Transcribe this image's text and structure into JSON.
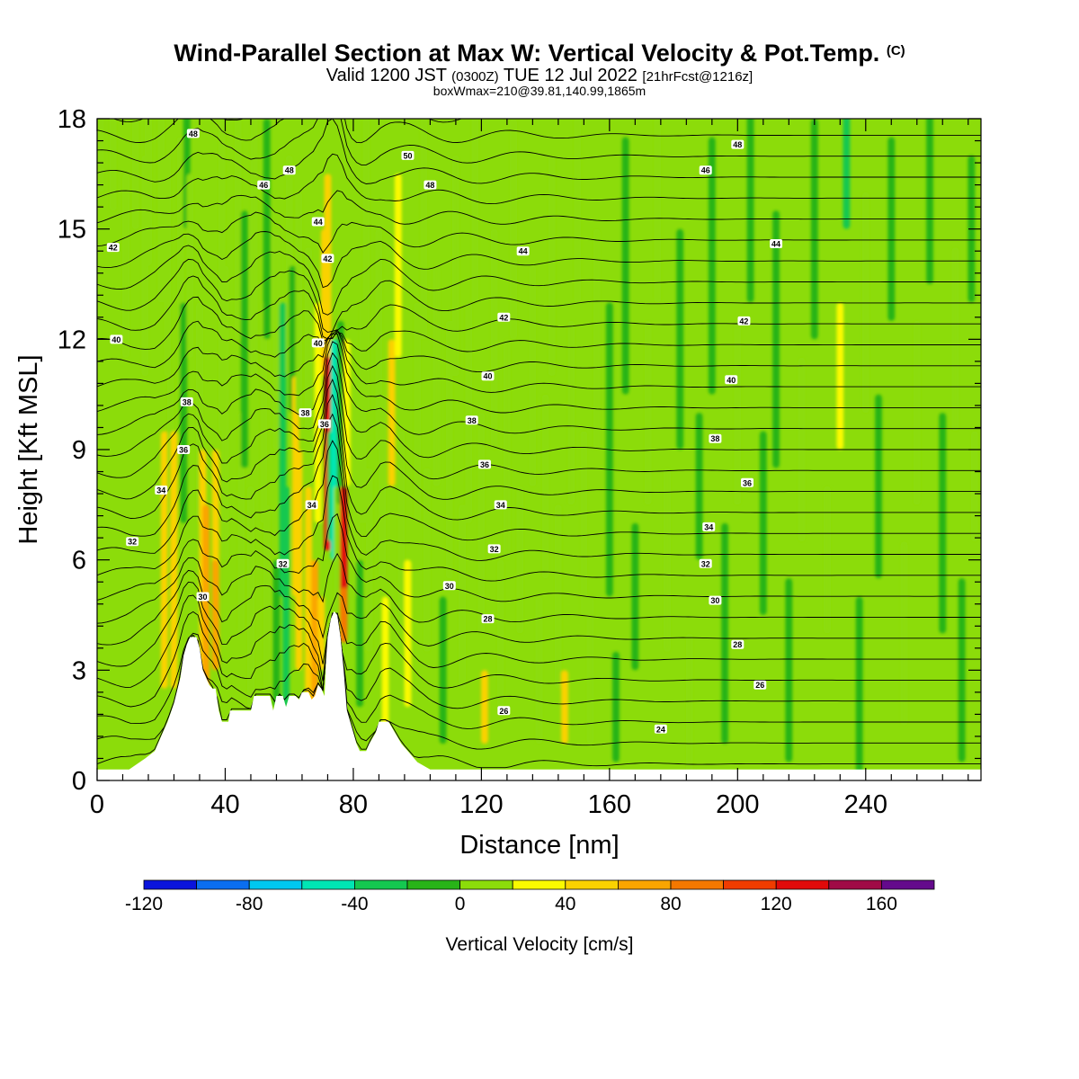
{
  "header": {
    "title": "Wind-Parallel Section at Max W: Vertical Velocity & Pot.Temp.",
    "copyright": "(C)",
    "valid_a": "Valid 1200 JST",
    "valid_utc": "(0300Z)",
    "valid_b": "TUE 12 Jul 2022",
    "forecast": "[21hrFcst@1216z]",
    "box_info": "boxWmax=210@39.81,140.99,1865m"
  },
  "chart_data": {
    "type": "heatmap",
    "xlabel": "Distance [nm]",
    "ylabel": "Height [Kft MSL]",
    "xlim": [
      0,
      276
    ],
    "ylim": [
      0,
      18
    ],
    "x_ticks": [
      0,
      40,
      80,
      120,
      160,
      200,
      240
    ],
    "y_ticks": [
      0,
      3,
      6,
      9,
      12,
      15,
      18
    ],
    "colorbar": {
      "label": "Vertical Velocity [cm/s]",
      "bounds": [
        -120,
        180
      ],
      "tick_values": [
        -120,
        -80,
        -40,
        0,
        40,
        80,
        120,
        160
      ],
      "colors": [
        "#0a14dc",
        "#0a6ef0",
        "#00c8f0",
        "#00e6b4",
        "#14c850",
        "#28b418",
        "#8cdc0a",
        "#fafa00",
        "#fad200",
        "#faa500",
        "#f57800",
        "#f03c00",
        "#e10a0a",
        "#a00a46",
        "#640a8c"
      ]
    },
    "terrain_kft": [
      [
        0,
        0.3
      ],
      [
        10,
        0.3
      ],
      [
        15,
        0.6
      ],
      [
        18,
        0.8
      ],
      [
        20,
        1.2
      ],
      [
        22,
        1.6
      ],
      [
        24,
        2.1
      ],
      [
        26,
        2.8
      ],
      [
        27,
        3.4
      ],
      [
        28,
        3.7
      ],
      [
        29,
        3.9
      ],
      [
        31,
        3.9
      ],
      [
        32,
        3.6
      ],
      [
        33,
        3.0
      ],
      [
        35,
        2.6
      ],
      [
        36,
        2.5
      ],
      [
        37,
        2.5
      ],
      [
        38,
        1.9
      ],
      [
        39,
        1.6
      ],
      [
        41,
        1.6
      ],
      [
        41.5,
        1.9
      ],
      [
        48,
        1.9
      ],
      [
        49,
        2.3
      ],
      [
        54,
        2.3
      ],
      [
        55,
        1.9
      ],
      [
        56,
        2.3
      ],
      [
        58,
        2.3
      ],
      [
        59,
        2.0
      ],
      [
        60,
        2.3
      ],
      [
        62,
        2.3
      ],
      [
        63,
        2.2
      ],
      [
        64,
        2.4
      ],
      [
        66,
        2.4
      ],
      [
        67,
        2.2
      ],
      [
        68,
        2.3
      ],
      [
        69,
        2.6
      ],
      [
        70,
        2.5
      ],
      [
        71,
        2.3
      ],
      [
        71.5,
        3.3
      ],
      [
        72,
        3.9
      ],
      [
        73,
        4.4
      ],
      [
        74,
        4.6
      ],
      [
        75,
        4.5
      ],
      [
        76,
        3.9
      ],
      [
        77,
        3.0
      ],
      [
        78,
        1.9
      ],
      [
        79,
        1.6
      ],
      [
        80,
        1.3
      ],
      [
        81,
        1.0
      ],
      [
        82,
        0.8
      ],
      [
        84,
        0.8
      ],
      [
        85,
        1.0
      ],
      [
        87,
        1.3
      ],
      [
        88,
        1.6
      ],
      [
        91,
        1.6
      ],
      [
        93,
        1.3
      ],
      [
        95,
        1.0
      ],
      [
        97,
        0.8
      ],
      [
        100,
        0.5
      ],
      [
        104,
        0.3
      ],
      [
        276,
        0.3
      ]
    ],
    "field_cells": [
      [
        1,
        18,
        4,
        0
      ],
      [
        5,
        18,
        5,
        0
      ],
      [
        9,
        14,
        5,
        0
      ],
      [
        9,
        6,
        0,
        0
      ],
      [
        12,
        18,
        6,
        0
      ],
      [
        15,
        14,
        6,
        0
      ],
      [
        16,
        18,
        8,
        0
      ],
      [
        20,
        16,
        6,
        0
      ],
      [
        21,
        6,
        7,
        40
      ],
      [
        22,
        14,
        6,
        0
      ],
      [
        23,
        8,
        6,
        0
      ],
      [
        24,
        6.5,
        6,
        40
      ],
      [
        24,
        5,
        5,
        55
      ],
      [
        26,
        14,
        7,
        0
      ],
      [
        27,
        10,
        6,
        -20
      ],
      [
        28,
        18,
        6,
        -20
      ],
      [
        29,
        14,
        5,
        0
      ],
      [
        32,
        10,
        6,
        0
      ],
      [
        33,
        5,
        8,
        40
      ],
      [
        34,
        5,
        5,
        65
      ],
      [
        37,
        6,
        6,
        40
      ],
      [
        37,
        4.5,
        3,
        70
      ],
      [
        39,
        14,
        9,
        0
      ],
      [
        40,
        10,
        8,
        0
      ],
      [
        44,
        16,
        8,
        0
      ],
      [
        45,
        7,
        6,
        0
      ],
      [
        46,
        12,
        7,
        -20
      ],
      [
        48,
        5,
        6,
        0
      ],
      [
        49,
        15,
        8,
        0
      ],
      [
        52,
        10,
        6,
        0
      ],
      [
        53,
        15,
        6,
        -20
      ],
      [
        53,
        5,
        5,
        0
      ],
      [
        56,
        12,
        6,
        0
      ],
      [
        56,
        4,
        4,
        -20
      ],
      [
        58,
        9,
        8,
        -35
      ],
      [
        59,
        5,
        6,
        -40
      ],
      [
        60,
        14,
        6,
        0
      ],
      [
        61,
        12,
        4,
        -20
      ],
      [
        62,
        8,
        6,
        40
      ],
      [
        63,
        13,
        6,
        0
      ],
      [
        63,
        6,
        6,
        40
      ],
      [
        66,
        5,
        6,
        40
      ],
      [
        66,
        12,
        5,
        0
      ],
      [
        68,
        4,
        4,
        60
      ],
      [
        69,
        10,
        6,
        20
      ],
      [
        70,
        4,
        2,
        40
      ],
      [
        71,
        13,
        4,
        45
      ],
      [
        72,
        9.5,
        6.5,
        120
      ],
      [
        72,
        14,
        5,
        40
      ],
      [
        73,
        8,
        3,
        -40
      ],
      [
        74,
        9,
        6,
        -60
      ],
      [
        75,
        6,
        4,
        0
      ],
      [
        76,
        10,
        5,
        -20
      ],
      [
        77,
        6,
        4,
        120
      ],
      [
        77,
        4.5,
        1.5,
        90
      ],
      [
        78,
        10,
        4,
        20
      ],
      [
        81,
        8,
        6,
        0
      ],
      [
        82,
        4,
        4,
        -20
      ],
      [
        83,
        10,
        6,
        0
      ],
      [
        84,
        14,
        8,
        0
      ],
      [
        85,
        6,
        5,
        0
      ],
      [
        88,
        12,
        6,
        0
      ],
      [
        89,
        8,
        5,
        0
      ],
      [
        90,
        3,
        4,
        20
      ],
      [
        92,
        10,
        4,
        40
      ],
      [
        94,
        14,
        5,
        20
      ],
      [
        95,
        7,
        5,
        0
      ],
      [
        97,
        4,
        4,
        20
      ],
      [
        100,
        10,
        6,
        0
      ],
      [
        102,
        15,
        6,
        0
      ],
      [
        103,
        6,
        5,
        0
      ],
      [
        106,
        11,
        6,
        0
      ],
      [
        108,
        3,
        4,
        -20
      ],
      [
        110,
        9,
        7,
        0
      ],
      [
        112,
        14,
        6,
        0
      ],
      [
        114,
        5,
        5,
        0
      ],
      [
        116,
        10,
        6,
        0
      ],
      [
        118,
        16,
        6,
        0
      ],
      [
        120,
        7,
        6,
        0
      ],
      [
        121,
        2,
        2,
        40
      ],
      [
        124,
        12,
        6,
        0
      ],
      [
        126,
        4,
        4,
        0
      ],
      [
        128,
        9,
        6,
        0
      ],
      [
        130,
        15,
        6,
        0
      ],
      [
        132,
        6,
        4,
        0
      ],
      [
        136,
        11,
        6,
        0
      ],
      [
        138,
        3,
        4,
        0
      ],
      [
        140,
        8,
        5,
        0
      ],
      [
        142,
        14,
        6,
        0
      ],
      [
        144,
        5,
        5,
        0
      ],
      [
        146,
        2,
        2,
        40
      ],
      [
        148,
        10,
        5,
        0
      ],
      [
        150,
        16,
        6,
        0
      ],
      [
        152,
        7,
        5,
        0
      ],
      [
        154,
        3,
        4,
        0
      ],
      [
        156,
        12,
        6,
        0
      ],
      [
        160,
        9,
        8,
        -20
      ],
      [
        162,
        2,
        3,
        -20
      ],
      [
        165,
        14,
        7,
        -20
      ],
      [
        168,
        5,
        4,
        -20
      ],
      [
        172,
        10,
        5,
        0
      ],
      [
        175,
        16,
        6,
        0
      ],
      [
        178,
        6,
        5,
        0
      ],
      [
        182,
        12,
        6,
        -20
      ],
      [
        185,
        2,
        4,
        0
      ],
      [
        188,
        8,
        4,
        -20
      ],
      [
        192,
        14,
        7,
        -20
      ],
      [
        196,
        4,
        6,
        -20
      ],
      [
        200,
        10,
        5,
        0
      ],
      [
        204,
        16,
        6,
        -20
      ],
      [
        208,
        7,
        5,
        -20
      ],
      [
        212,
        12,
        7,
        -20
      ],
      [
        216,
        3,
        5,
        -20
      ],
      [
        220,
        9,
        5,
        0
      ],
      [
        224,
        15,
        6,
        -20
      ],
      [
        228,
        6,
        4,
        0
      ],
      [
        232,
        11,
        4,
        20
      ],
      [
        234,
        17,
        4,
        -40
      ],
      [
        238,
        2,
        6,
        -20
      ],
      [
        240,
        13,
        6,
        0
      ],
      [
        244,
        8,
        5,
        -20
      ],
      [
        248,
        15,
        5,
        -20
      ],
      [
        252,
        4,
        5,
        0
      ],
      [
        256,
        10,
        5,
        0
      ],
      [
        260,
        16,
        5,
        -20
      ],
      [
        264,
        7,
        6,
        -20
      ],
      [
        268,
        12,
        5,
        0
      ],
      [
        270,
        3,
        5,
        -20
      ],
      [
        273,
        15,
        4,
        -20
      ],
      [
        274,
        8,
        3,
        0
      ]
    ],
    "contour_labels": [
      [
        30,
        17.6,
        "48"
      ],
      [
        52,
        16.2,
        "46"
      ],
      [
        5,
        14.5,
        "42"
      ],
      [
        6,
        12.0,
        "40"
      ],
      [
        28,
        10.3,
        "38"
      ],
      [
        27,
        9.0,
        "36"
      ],
      [
        20,
        7.9,
        "34"
      ],
      [
        11,
        6.5,
        "32"
      ],
      [
        33,
        5.0,
        "30"
      ],
      [
        60,
        16.6,
        "48"
      ],
      [
        69,
        15.2,
        "44"
      ],
      [
        72,
        14.2,
        "42"
      ],
      [
        69,
        11.9,
        "40"
      ],
      [
        65,
        10.0,
        "38"
      ],
      [
        71,
        9.7,
        "36"
      ],
      [
        67,
        7.5,
        "34"
      ],
      [
        58,
        5.9,
        "32"
      ],
      [
        97,
        17.0,
        "50"
      ],
      [
        104,
        16.2,
        "48"
      ],
      [
        133,
        14.4,
        "44"
      ],
      [
        127,
        12.6,
        "42"
      ],
      [
        122,
        11.0,
        "40"
      ],
      [
        117,
        9.8,
        "38"
      ],
      [
        121,
        8.6,
        "36"
      ],
      [
        126,
        7.5,
        "34"
      ],
      [
        124,
        6.3,
        "32"
      ],
      [
        110,
        5.3,
        "30"
      ],
      [
        122,
        4.4,
        "28"
      ],
      [
        127,
        1.9,
        "26"
      ],
      [
        200,
        17.3,
        "48"
      ],
      [
        190,
        16.6,
        "46"
      ],
      [
        212,
        14.6,
        "44"
      ],
      [
        202,
        12.5,
        "42"
      ],
      [
        198,
        10.9,
        "40"
      ],
      [
        193,
        9.3,
        "38"
      ],
      [
        203,
        8.1,
        "36"
      ],
      [
        191,
        6.9,
        "34"
      ],
      [
        190,
        5.9,
        "32"
      ],
      [
        193,
        4.9,
        "30"
      ],
      [
        200,
        3.7,
        "28"
      ],
      [
        207,
        2.6,
        "26"
      ],
      [
        176,
        1.4,
        "24"
      ]
    ]
  }
}
